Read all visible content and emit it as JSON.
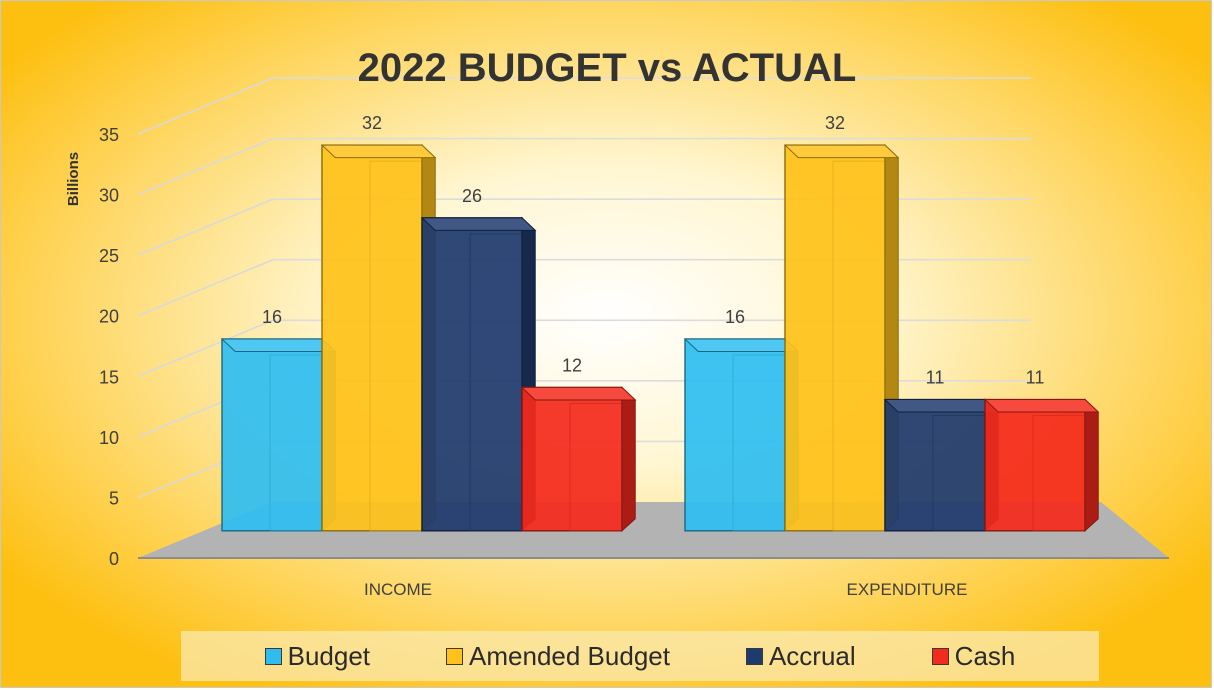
{
  "chart_data": {
    "type": "bar",
    "title": "2022 BUDGET vs ACTUAL",
    "ylabel": "Billions",
    "xlabel": "",
    "ylim": [
      0,
      35
    ],
    "yticks": [
      0,
      5,
      10,
      15,
      20,
      25,
      30,
      35
    ],
    "categories": [
      "INCOME",
      "EXPENDITURE"
    ],
    "series": [
      {
        "name": "Budget",
        "values": [
          16,
          16
        ],
        "color": "#2fbdf0"
      },
      {
        "name": "Amended Budget",
        "values": [
          32,
          32
        ],
        "color": "#ffc21a"
      },
      {
        "name": "Accrual",
        "values": [
          26,
          11
        ],
        "color": "#1f3a6e"
      },
      {
        "name": "Cash",
        "values": [
          12,
          11
        ],
        "color": "#f42a1c"
      }
    ],
    "data_labels": [
      [
        "16",
        "16"
      ],
      [
        "32",
        "32"
      ],
      [
        "26",
        "11"
      ],
      [
        "12",
        "11"
      ]
    ],
    "grid": true,
    "legend_position": "bottom",
    "background_colors": {
      "center": "#ffffff",
      "edge": "#fdbf10"
    }
  }
}
